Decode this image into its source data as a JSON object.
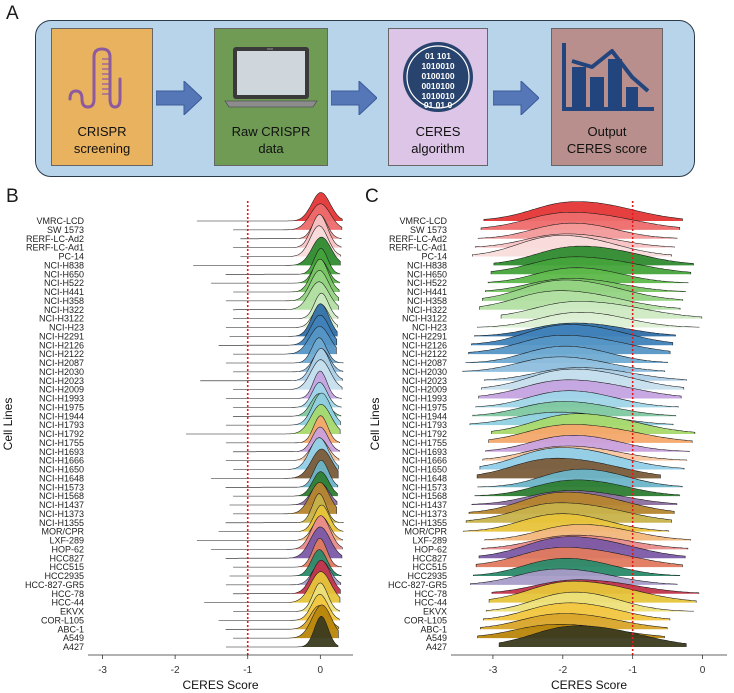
{
  "panels": {
    "a": "A",
    "b": "B",
    "c": "C"
  },
  "pipeline": {
    "steps": [
      {
        "label": "CRISPR\nscreening",
        "color": "#e8b25f",
        "icon": "dna-hairpin-icon"
      },
      {
        "label": "Raw CRISPR\ndata",
        "color": "#6f9b55",
        "icon": "laptop-icon"
      },
      {
        "label": "CERES\nalgorithm",
        "color": "#dcc5e6",
        "icon": "binary-globe-icon"
      },
      {
        "label": "Output\nCERES score",
        "color": "#b88f8c",
        "icon": "bar-chart-icon"
      }
    ],
    "binary_rows": [
      "01 101",
      "1010010",
      "0100100",
      "0010100",
      "1010010",
      "01 01 0"
    ]
  },
  "chart_data": [
    {
      "type": "ridgeline",
      "title": "",
      "xlabel": "CERES Score",
      "ylabel": "Cell Lines",
      "xlim": [
        -3.2,
        0.45
      ],
      "xticks": [
        -3,
        -2,
        -1,
        0
      ],
      "reference_line": -1,
      "reference_color": "#e31a1c",
      "categories": [
        "VMRC-LCD",
        "SW 1573",
        "RERF-LC-Ad2",
        "RERF-LC-Ad1",
        "PC-14",
        "NCI-H838",
        "NCI-H650",
        "NCI-H522",
        "NCI-H441",
        "NCI-H358",
        "NCI-H322",
        "NCI-H3122",
        "NCI-H23",
        "NCI-H2291",
        "NCI-H2126",
        "NCI-H2122",
        "NCI-H2087",
        "NCI-H2030",
        "NCI-H2023",
        "NCI-H2009",
        "NCI-H1993",
        "NCI-H1975",
        "NCI-H1944",
        "NCI-H1793",
        "NCI-H1792",
        "NCI-H1755",
        "NCI-H1693",
        "NCI-H1666",
        "NCI-H1650",
        "NCI-H1648",
        "NCI-H1573",
        "NCI-H1568",
        "NCI-H1437",
        "NCI-H1373",
        "NCI-H1355",
        "MOR/CPR",
        "LXF-289",
        "HOP-62",
        "HCC827",
        "HCC515",
        "HCC2935",
        "HCC-827-GR5",
        "HCC-78",
        "HCC-44",
        "EKVX",
        "COR-L105",
        "ABC-1",
        "A549",
        "A427"
      ],
      "peak_center": 0,
      "range_min": [
        -1.7,
        -1.2,
        -1.1,
        -1.2,
        -1.1,
        -1.75,
        -1.3,
        -1.5,
        -1.2,
        -1.3,
        -1.2,
        -1.2,
        -1.3,
        -1.25,
        -1.4,
        -1.2,
        -1.3,
        -1.2,
        -1.65,
        -1.2,
        -1.3,
        -1.2,
        -1.2,
        -1.3,
        -1.85,
        -1.3,
        -1.2,
        -1.3,
        -1.2,
        -1.5,
        -1.3,
        -1.2,
        -1.25,
        -1.2,
        -1.3,
        -1.4,
        -1.7,
        -1.5,
        -1.3,
        -1.2,
        -1.25,
        -1.3,
        -1.2,
        -1.6,
        -1.2,
        -1.4,
        -1.3,
        -1.2,
        -1.3
      ]
    },
    {
      "type": "ridgeline",
      "title": "",
      "xlabel": "CERES Score",
      "ylabel": "Cell Lines",
      "xlim": [
        -3.6,
        0.35
      ],
      "xticks": [
        -3,
        -2,
        -1,
        0
      ],
      "reference_line": -1,
      "reference_color": "#e31a1c",
      "categories": [
        "VMRC-LCD",
        "SW 1573",
        "RERF-LC-Ad2",
        "RERF-LC-Ad1",
        "PC-14",
        "NCI-H838",
        "NCI-H650",
        "NCI-H522",
        "NCI-H441",
        "NCI-H358",
        "NCI-H322",
        "NCI-H3122",
        "NCI-H23",
        "NCI-H2291",
        "NCI-H2126",
        "NCI-H2122",
        "NCI-H2087",
        "NCI-H2030",
        "NCI-H2023",
        "NCI-H2009",
        "NCI-H1993",
        "NCI-H1975",
        "NCI-H1944",
        "NCI-H1793",
        "NCI-H1792",
        "NCI-H1755",
        "NCI-H1693",
        "NCI-H1666",
        "NCI-H1650",
        "NCI-H1648",
        "NCI-H1573",
        "NCI-H1568",
        "NCI-H1437",
        "NCI-H1373",
        "NCI-H1355",
        "MOR/CPR",
        "LXF-289",
        "HOP-62",
        "HCC827",
        "HCC515",
        "HCC2935",
        "HCC-827-GR5",
        "HCC-78",
        "HCC-44",
        "EKVX",
        "COR-L105",
        "ABC-1",
        "A549",
        "A427"
      ],
      "peak_center": -1.75
    }
  ],
  "ridge_colors": [
    "#e53535",
    "#ee6b6b",
    "#f39a9a",
    "#f7c2c2",
    "#f9dcdc",
    "#2e8b2e",
    "#45a33a",
    "#5cb84a",
    "#78c564",
    "#95d483",
    "#b2e0a3",
    "#cdeac2",
    "#dcefd4",
    "#2f6fa8",
    "#3f82b8",
    "#5596c6",
    "#6faad2",
    "#8ebedd",
    "#accfe6",
    "#c6dfee",
    "#c5a3e0",
    "#9fd6e8",
    "#7ec8a0",
    "#8fd0e0",
    "#a6d96a",
    "#f4a86a",
    "#c9a0dc",
    "#f7c6a0",
    "#90cfe8",
    "#7a5c3a",
    "#6db5c8",
    "#2e7d32",
    "#8d6e9e",
    "#b5852e",
    "#c7b24a",
    "#e8c33a",
    "#f2b77a",
    "#e88a8a",
    "#7b5aa6",
    "#e07a5f",
    "#2a8a6a",
    "#a89cc8",
    "#c0344a",
    "#e6c53a",
    "#ede07a",
    "#f2c640",
    "#d9a52a",
    "#b8860b",
    "#3b3b1f"
  ]
}
